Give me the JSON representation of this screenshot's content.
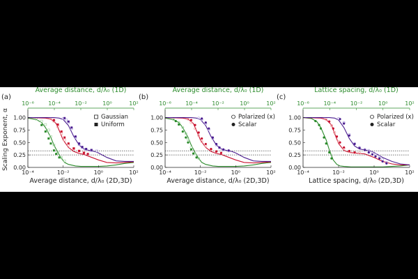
{
  "figure": {
    "background": "#000000",
    "panel_background": "#ffffff",
    "colors": {
      "green": "#2a8a2a",
      "red": "#c8102e",
      "purple": "#4b1d8f",
      "light_green": "#a8d8a8",
      "light_red": "#f2a6a6",
      "light_purple": "#b6a8e0",
      "axis": "#222222",
      "top_axis": "#2a8a2a",
      "reference_line": "#444444"
    },
    "shared": {
      "ylabel": "Scaling Exponent, α"
    }
  },
  "chart_data": [
    {
      "panel_label": "(a)",
      "type": "line",
      "x_scale": "log",
      "xlabel": "Average distance, d/λ₀ (2D,3D)",
      "top_xlabel": "Average distance, d/λ₀ (1D)",
      "xlim": [
        0.0001,
        100
      ],
      "top_xlim": [
        1e-06,
        100
      ],
      "ylim": [
        0,
        1.05
      ],
      "yticks": [
        "1.00",
        "0.75",
        "0.50",
        "0.25",
        "0.00"
      ],
      "yticks_values": [
        1.0,
        0.75,
        0.5,
        0.25,
        0.0
      ],
      "xticks": [
        "10⁻⁴",
        "10⁻²",
        "10⁰",
        "10²"
      ],
      "top_xticks": [
        "10⁻⁶",
        "10⁻⁴",
        "10⁻²",
        "10⁰",
        "10²"
      ],
      "reference_lines": [
        0.25,
        0.333
      ],
      "legend": {
        "placement": "top-right",
        "entries": [
          {
            "label": "Gaussian",
            "marker": "open-square"
          },
          {
            "label": "Uniform",
            "marker": "filled-square"
          }
        ]
      },
      "series": [
        {
          "color": "green",
          "style": "solid",
          "x": [
            0.0001,
            0.0003,
            0.0006,
            0.001,
            0.002,
            0.003,
            0.005,
            0.008,
            0.012,
            0.02,
            0.05,
            0.1,
            0.3,
            1,
            3,
            10,
            30,
            100
          ],
          "y": [
            0.99,
            0.96,
            0.9,
            0.8,
            0.6,
            0.45,
            0.3,
            0.18,
            0.1,
            0.06,
            0.03,
            0.02,
            0.02,
            0.02,
            0.03,
            0.05,
            0.08,
            0.1
          ]
        },
        {
          "color": "light_green",
          "style": "points",
          "marker": "open-square",
          "x": [
            0.0003,
            0.0006,
            0.001,
            0.0015,
            0.002,
            0.003,
            0.005,
            0.008,
            0.012
          ],
          "y": [
            0.97,
            0.93,
            0.86,
            0.75,
            0.62,
            0.45,
            0.3,
            0.2,
            0.13
          ]
        },
        {
          "color": "green",
          "style": "points",
          "marker": "filled-square",
          "x": [
            0.0006,
            0.001,
            0.0015,
            0.002,
            0.003,
            0.004,
            0.006
          ],
          "y": [
            0.85,
            0.72,
            0.58,
            0.48,
            0.34,
            0.27,
            0.2
          ]
        },
        {
          "color": "red",
          "style": "solid",
          "x": [
            0.0001,
            0.001,
            0.002,
            0.004,
            0.006,
            0.01,
            0.02,
            0.04,
            0.08,
            0.15,
            0.3,
            1,
            3,
            10,
            30,
            100
          ],
          "y": [
            1.0,
            0.99,
            0.97,
            0.88,
            0.74,
            0.55,
            0.4,
            0.32,
            0.28,
            0.26,
            0.22,
            0.15,
            0.1,
            0.09,
            0.1,
            0.11
          ]
        },
        {
          "color": "light_red",
          "style": "points",
          "marker": "open-square",
          "x": [
            0.002,
            0.003,
            0.005,
            0.008,
            0.012,
            0.02,
            0.04,
            0.08,
            0.15
          ],
          "y": [
            0.98,
            0.93,
            0.82,
            0.68,
            0.55,
            0.45,
            0.38,
            0.33,
            0.3
          ]
        },
        {
          "color": "red",
          "style": "points",
          "marker": "filled-square",
          "x": [
            0.003,
            0.005,
            0.008,
            0.012,
            0.02,
            0.04,
            0.08,
            0.15,
            0.25
          ],
          "y": [
            0.95,
            0.86,
            0.72,
            0.6,
            0.48,
            0.38,
            0.33,
            0.29,
            0.27
          ]
        },
        {
          "color": "purple",
          "style": "solid",
          "x": [
            0.0001,
            0.003,
            0.006,
            0.01,
            0.02,
            0.04,
            0.08,
            0.15,
            0.3,
            0.6,
            1,
            3,
            10,
            30,
            100
          ],
          "y": [
            1.0,
            1.0,
            0.99,
            0.96,
            0.84,
            0.62,
            0.45,
            0.37,
            0.34,
            0.32,
            0.29,
            0.2,
            0.13,
            0.12,
            0.12
          ]
        },
        {
          "color": "light_purple",
          "style": "points",
          "marker": "open-square",
          "x": [
            0.01,
            0.015,
            0.02,
            0.03,
            0.05,
            0.08,
            0.12,
            0.2,
            0.4,
            0.8
          ],
          "y": [
            0.98,
            0.95,
            0.9,
            0.78,
            0.6,
            0.46,
            0.4,
            0.36,
            0.34,
            0.33
          ]
        },
        {
          "color": "purple",
          "style": "points",
          "marker": "filled-square",
          "x": [
            0.012,
            0.02,
            0.03,
            0.05,
            0.08,
            0.12,
            0.2,
            0.4
          ],
          "y": [
            0.99,
            0.92,
            0.8,
            0.62,
            0.48,
            0.41,
            0.37,
            0.35
          ]
        }
      ]
    },
    {
      "panel_label": "(b)",
      "type": "line",
      "x_scale": "log",
      "xlabel": "Average distance, d/λ₀ (2D,3D)",
      "top_xlabel": "Average distance, d/λ₀ (1D)",
      "xlim": [
        0.0001,
        100
      ],
      "top_xlim": [
        1e-06,
        100
      ],
      "ylim": [
        0,
        1.05
      ],
      "yticks": [
        "1.00",
        "0.75",
        "0.50",
        "0.25",
        "0.00"
      ],
      "yticks_values": [
        1.0,
        0.75,
        0.5,
        0.25,
        0.0
      ],
      "xticks": [
        "10⁻⁴",
        "10⁻²",
        "10⁰",
        "10²"
      ],
      "top_xticks": [
        "10⁻⁶",
        "10⁻⁴",
        "10⁻²",
        "10⁰",
        "10²"
      ],
      "reference_lines": [
        0.25,
        0.333
      ],
      "legend": {
        "placement": "top-right",
        "entries": [
          {
            "label": "Polarized (x)",
            "marker": "open-circle"
          },
          {
            "label": "Scalar",
            "marker": "filled-circle"
          }
        ]
      },
      "series": [
        {
          "color": "green",
          "style": "solid",
          "x": [
            0.0001,
            0.0003,
            0.0006,
            0.001,
            0.002,
            0.003,
            0.005,
            0.008,
            0.012,
            0.02,
            0.05,
            0.1,
            0.3,
            1,
            3,
            10,
            30,
            100
          ],
          "y": [
            0.99,
            0.96,
            0.9,
            0.8,
            0.6,
            0.45,
            0.3,
            0.18,
            0.1,
            0.06,
            0.03,
            0.02,
            0.02,
            0.02,
            0.03,
            0.05,
            0.08,
            0.1
          ]
        },
        {
          "color": "light_green",
          "style": "points",
          "marker": "open-circle",
          "x": [
            0.0003,
            0.0006,
            0.001,
            0.0015,
            0.002,
            0.003,
            0.005,
            0.008
          ],
          "y": [
            0.96,
            0.9,
            0.8,
            0.68,
            0.56,
            0.4,
            0.27,
            0.18
          ]
        },
        {
          "color": "green",
          "style": "points",
          "marker": "filled-circle",
          "x": [
            0.0004,
            0.0006,
            0.001,
            0.0015,
            0.002,
            0.003,
            0.004,
            0.006
          ],
          "y": [
            0.93,
            0.86,
            0.72,
            0.6,
            0.5,
            0.36,
            0.28,
            0.2
          ]
        },
        {
          "color": "red",
          "style": "solid",
          "x": [
            0.0001,
            0.001,
            0.002,
            0.004,
            0.006,
            0.01,
            0.02,
            0.04,
            0.08,
            0.15,
            0.3,
            1,
            3,
            10,
            30,
            100
          ],
          "y": [
            1.0,
            0.99,
            0.97,
            0.88,
            0.74,
            0.55,
            0.4,
            0.32,
            0.28,
            0.26,
            0.22,
            0.15,
            0.1,
            0.09,
            0.1,
            0.11
          ]
        },
        {
          "color": "light_red",
          "style": "points",
          "marker": "open-circle",
          "x": [
            0.002,
            0.003,
            0.005,
            0.008,
            0.012,
            0.02,
            0.04,
            0.08
          ],
          "y": [
            0.97,
            0.9,
            0.78,
            0.64,
            0.52,
            0.43,
            0.36,
            0.32
          ]
        },
        {
          "color": "red",
          "style": "points",
          "marker": "filled-circle",
          "x": [
            0.003,
            0.005,
            0.008,
            0.012,
            0.02,
            0.04,
            0.08,
            0.15
          ],
          "y": [
            0.95,
            0.85,
            0.7,
            0.58,
            0.47,
            0.37,
            0.32,
            0.29
          ]
        },
        {
          "color": "purple",
          "style": "solid",
          "x": [
            0.0001,
            0.003,
            0.006,
            0.01,
            0.02,
            0.04,
            0.08,
            0.15,
            0.3,
            0.6,
            1,
            3,
            10,
            30,
            100
          ],
          "y": [
            1.0,
            1.0,
            0.99,
            0.96,
            0.84,
            0.62,
            0.45,
            0.37,
            0.34,
            0.32,
            0.29,
            0.2,
            0.13,
            0.12,
            0.12
          ]
        },
        {
          "color": "light_purple",
          "style": "points",
          "marker": "open-circle",
          "x": [
            0.008,
            0.012,
            0.02,
            0.03,
            0.05,
            0.08,
            0.12,
            0.2,
            0.4
          ],
          "y": [
            0.99,
            0.96,
            0.88,
            0.76,
            0.58,
            0.45,
            0.39,
            0.35,
            0.33
          ]
        },
        {
          "color": "purple",
          "style": "points",
          "marker": "filled-circle",
          "x": [
            0.012,
            0.02,
            0.03,
            0.05,
            0.08,
            0.12,
            0.2,
            0.4
          ],
          "y": [
            0.98,
            0.9,
            0.78,
            0.6,
            0.47,
            0.4,
            0.36,
            0.34
          ]
        }
      ]
    },
    {
      "panel_label": "(c)",
      "type": "line",
      "x_scale": "log",
      "xlabel": "Lattice spacing, d/λ₀ (2D,3D)",
      "top_xlabel": "Lattice spacing, d/λ₀ (1D)",
      "xlim": [
        0.0001,
        100
      ],
      "top_xlim": [
        1e-06,
        100
      ],
      "ylim": [
        0,
        1.05
      ],
      "yticks": [
        "1.00",
        "0.75",
        "0.50",
        "0.25",
        "0.00"
      ],
      "yticks_values": [
        1.0,
        0.75,
        0.5,
        0.25,
        0.0
      ],
      "xticks": [
        "10⁻⁴",
        "10⁻²",
        "10⁰",
        "10²"
      ],
      "top_xticks": [
        "10⁻⁶",
        "10⁻⁴",
        "10⁻²",
        "10⁰",
        "10²"
      ],
      "reference_lines": [
        0.25,
        0.333
      ],
      "legend": {
        "placement": "top-right",
        "entries": [
          {
            "label": "Polarized (x)",
            "marker": "open-circle"
          },
          {
            "label": "Scalar",
            "marker": "filled-circle"
          }
        ]
      },
      "series": [
        {
          "color": "green",
          "style": "solid",
          "x": [
            0.0001,
            0.0003,
            0.0006,
            0.001,
            0.002,
            0.003,
            0.005,
            0.008,
            0.012,
            0.02,
            0.05,
            0.1,
            0.3,
            1,
            3,
            10,
            30,
            100
          ],
          "y": [
            1.0,
            0.98,
            0.92,
            0.8,
            0.55,
            0.35,
            0.15,
            0.06,
            0.03,
            0.02,
            0.01,
            0.01,
            0.01,
            0.01,
            0.01,
            0.02,
            0.03,
            0.05
          ]
        },
        {
          "color": "green",
          "style": "points",
          "marker": "filled-circle",
          "x": [
            0.0005,
            0.0008,
            0.001,
            0.0015,
            0.002,
            0.003,
            0.004
          ],
          "y": [
            0.93,
            0.85,
            0.78,
            0.6,
            0.48,
            0.3,
            0.18
          ]
        },
        {
          "color": "red",
          "style": "solid",
          "x": [
            0.0001,
            0.001,
            0.002,
            0.004,
            0.006,
            0.01,
            0.02,
            0.04,
            0.08,
            0.15,
            0.3,
            1,
            3,
            10,
            30,
            100
          ],
          "y": [
            1.0,
            0.99,
            0.96,
            0.85,
            0.68,
            0.48,
            0.34,
            0.3,
            0.29,
            0.28,
            0.27,
            0.2,
            0.12,
            0.07,
            0.05,
            0.05
          ]
        },
        {
          "color": "light_red",
          "style": "points",
          "marker": "open-circle",
          "x": [
            0.002,
            0.004,
            0.006,
            0.01,
            0.02,
            0.04,
            0.08,
            0.15
          ],
          "y": [
            0.96,
            0.84,
            0.7,
            0.52,
            0.38,
            0.32,
            0.3,
            0.29
          ]
        },
        {
          "color": "red",
          "style": "points",
          "marker": "filled-circle",
          "x": [
            0.003,
            0.005,
            0.008,
            0.012,
            0.02,
            0.04,
            0.08
          ],
          "y": [
            0.92,
            0.78,
            0.62,
            0.5,
            0.4,
            0.33,
            0.3
          ]
        },
        {
          "color": "purple",
          "style": "solid",
          "x": [
            0.0001,
            0.003,
            0.006,
            0.01,
            0.02,
            0.04,
            0.08,
            0.15,
            0.3,
            0.6,
            1,
            3,
            10,
            30,
            100
          ],
          "y": [
            1.0,
            1.0,
            0.99,
            0.95,
            0.8,
            0.58,
            0.43,
            0.37,
            0.35,
            0.33,
            0.3,
            0.2,
            0.12,
            0.07,
            0.05
          ]
        },
        {
          "color": "light_purple",
          "style": "points",
          "marker": "open-circle",
          "x": [
            0.01,
            0.02,
            0.04,
            0.08,
            0.15,
            0.3,
            0.5,
            0.8,
            1.2,
            2,
            3,
            5
          ],
          "y": [
            0.98,
            0.9,
            0.66,
            0.48,
            0.4,
            0.36,
            0.34,
            0.3,
            0.26,
            0.22,
            0.16,
            0.1
          ]
        },
        {
          "color": "purple",
          "style": "points",
          "marker": "filled-circle",
          "x": [
            0.012,
            0.02,
            0.04,
            0.08,
            0.15,
            0.3,
            0.5,
            0.8,
            1.2,
            2,
            3,
            5
          ],
          "y": [
            0.97,
            0.88,
            0.64,
            0.47,
            0.39,
            0.35,
            0.3,
            0.26,
            0.22,
            0.18,
            0.12,
            0.08
          ]
        }
      ]
    }
  ]
}
